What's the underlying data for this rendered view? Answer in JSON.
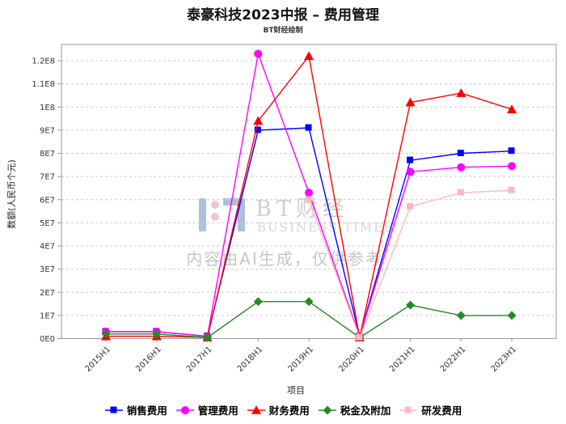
{
  "header": {
    "title": "泰豪科技2023中报 – 费用管理",
    "subtitle": "BT财经绘制"
  },
  "watermark": {
    "brand": "BT财经",
    "brand_prefix": "BT",
    "brand_sub": "BUSINESS TIMES",
    "disclaimer": "内容由AI生成，仅供参考"
  },
  "chart_data": {
    "type": "line",
    "title": "泰豪科技2023中报 – 费用管理",
    "subtitle": "BT财经绘制",
    "xlabel": "项目",
    "ylabel": "数额(人民币个元)",
    "legend_position": "bottom",
    "grid": "horizontal-dashed",
    "categories": [
      "2015H1",
      "2016H1",
      "2017H1",
      "2018H1",
      "2019H1",
      "2020H1",
      "2021H1",
      "2022H1",
      "2023H1"
    ],
    "ytick_labels": [
      "0E0",
      "1E7",
      "2E7",
      "3E7",
      "4E7",
      "5E7",
      "6E7",
      "7E7",
      "8E7",
      "9E7",
      "1E8",
      "1.1E8",
      "1.2E8"
    ],
    "ytick_values": [
      0,
      10000000,
      20000000,
      30000000,
      40000000,
      50000000,
      60000000,
      70000000,
      80000000,
      90000000,
      100000000,
      110000000,
      120000000
    ],
    "ylim": [
      0,
      127000000
    ],
    "series": [
      {
        "name": "销售费用",
        "color": "#0000FF",
        "marker": "square",
        "values": [
          3000000,
          3000000,
          1000000,
          90000000,
          91000000,
          1000000,
          77000000,
          80000000,
          81000000
        ]
      },
      {
        "name": "管理费用",
        "color": "#FF00FF",
        "marker": "circle",
        "values": [
          3000000,
          3000000,
          1000000,
          123000000,
          63000000,
          1000000,
          72000000,
          74000000,
          74500000
        ]
      },
      {
        "name": "财务费用",
        "color": "#FF0000",
        "marker": "triangle",
        "values": [
          1000000,
          1000000,
          500000,
          94000000,
          122000000,
          500000,
          102000000,
          106000000,
          99000000
        ]
      },
      {
        "name": "税金及附加",
        "color": "#228B22",
        "marker": "diamond",
        "values": [
          2000000,
          2000000,
          500000,
          16000000,
          16000000,
          500000,
          14500000,
          10000000,
          10000000
        ]
      },
      {
        "name": "研发费用",
        "color": "#FFB6C1",
        "marker": "square",
        "values": [
          null,
          null,
          null,
          null,
          60000000,
          500000,
          57000000,
          63000000,
          64000000
        ]
      }
    ]
  }
}
